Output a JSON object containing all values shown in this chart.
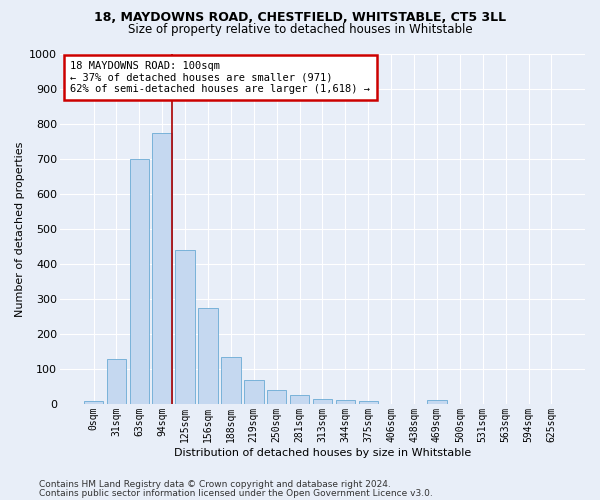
{
  "title1": "18, MAYDOWNS ROAD, CHESTFIELD, WHITSTABLE, CT5 3LL",
  "title2": "Size of property relative to detached houses in Whitstable",
  "xlabel": "Distribution of detached houses by size in Whitstable",
  "ylabel": "Number of detached properties",
  "bar_labels": [
    "0sqm",
    "31sqm",
    "63sqm",
    "94sqm",
    "125sqm",
    "156sqm",
    "188sqm",
    "219sqm",
    "250sqm",
    "281sqm",
    "313sqm",
    "344sqm",
    "375sqm",
    "406sqm",
    "438sqm",
    "469sqm",
    "500sqm",
    "531sqm",
    "563sqm",
    "594sqm",
    "625sqm"
  ],
  "bar_values": [
    8,
    128,
    700,
    775,
    440,
    275,
    133,
    68,
    40,
    25,
    15,
    12,
    8,
    0,
    0,
    10,
    0,
    0,
    0,
    0,
    0
  ],
  "bar_color": "#c5d8f0",
  "bar_edge_color": "#6aaad4",
  "vline_color": "#aa0000",
  "vline_x_index": 3,
  "annotation_title": "18 MAYDOWNS ROAD: 100sqm",
  "annotation_line1": "← 37% of detached houses are smaller (971)",
  "annotation_line2": "62% of semi-detached houses are larger (1,618) →",
  "annotation_box_facecolor": "#ffffff",
  "annotation_box_edgecolor": "#cc0000",
  "ylim": [
    0,
    1000
  ],
  "yticks": [
    0,
    100,
    200,
    300,
    400,
    500,
    600,
    700,
    800,
    900,
    1000
  ],
  "bg_color": "#e8eef8",
  "grid_color": "#ffffff",
  "title1_fontsize": 9,
  "title2_fontsize": 8.5,
  "axis_label_fontsize": 8,
  "tick_fontsize": 7,
  "footer1": "Contains HM Land Registry data © Crown copyright and database right 2024.",
  "footer2": "Contains public sector information licensed under the Open Government Licence v3.0.",
  "footer_fontsize": 6.5
}
